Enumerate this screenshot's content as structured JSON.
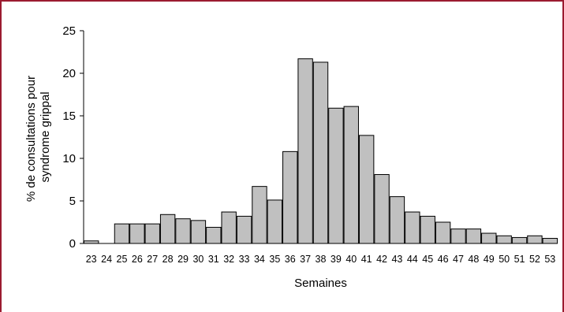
{
  "chart_data": {
    "type": "bar",
    "title": "",
    "xlabel": "Semaines",
    "ylabel_lines": [
      "% de consultations pour",
      "syndrome grippal"
    ],
    "ylim": [
      0,
      25
    ],
    "yticks": [
      0,
      5,
      10,
      15,
      20,
      25
    ],
    "grid": false,
    "categories": [
      "23",
      "24",
      "25",
      "26",
      "27",
      "28",
      "29",
      "30",
      "31",
      "32",
      "33",
      "34",
      "35",
      "36",
      "37",
      "38",
      "39",
      "40",
      "41",
      "42",
      "43",
      "44",
      "45",
      "46",
      "47",
      "48",
      "49",
      "50",
      "51",
      "52",
      "53"
    ],
    "values": [
      0.3,
      0,
      2.3,
      2.3,
      2.3,
      3.4,
      2.9,
      2.7,
      1.9,
      3.7,
      3.2,
      6.7,
      5.1,
      10.8,
      21.7,
      21.3,
      15.9,
      16.1,
      12.7,
      8.1,
      5.5,
      3.7,
      3.2,
      2.5,
      1.7,
      1.7,
      1.2,
      0.9,
      0.7,
      0.9,
      0.6
    ],
    "bar_color": "#c0c0c0",
    "bar_edge": "#000000"
  }
}
